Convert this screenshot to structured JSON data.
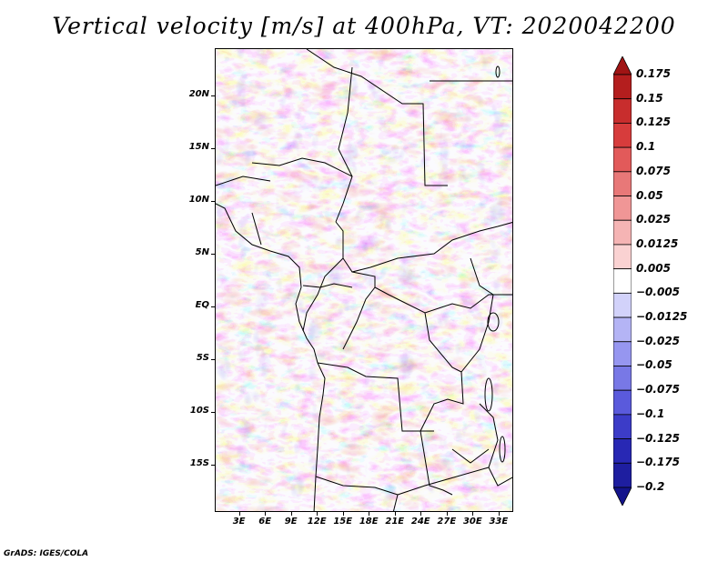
{
  "title": "Vertical velocity [m/s] at 400hPa, VT: 2020042200",
  "footer": "GrADS: IGES/COLA",
  "map": {
    "lat_labels": [
      "20N",
      "15N",
      "10N",
      "5N",
      "EQ",
      "5S",
      "10S",
      "15S"
    ],
    "lon_labels": [
      "3E",
      "6E",
      "9E",
      "12E",
      "15E",
      "18E",
      "21E",
      "24E",
      "27E",
      "30E",
      "33E"
    ],
    "lat_range": [
      -19.5,
      24.5
    ],
    "lon_range": [
      0.2,
      34.7
    ]
  },
  "colorbar": {
    "labels": [
      "0.175",
      "0.15",
      "0.125",
      "0.1",
      "0.075",
      "0.05",
      "0.025",
      "0.0125",
      "0.005",
      "−0.005",
      "−0.0125",
      "−0.025",
      "−0.05",
      "−0.075",
      "−0.1",
      "−0.125",
      "−0.175",
      "−0.2"
    ],
    "colors": [
      "#a01414",
      "#b41e1e",
      "#c82d2d",
      "#d73c3c",
      "#e25a5a",
      "#e87878",
      "#f09696",
      "#f5b4b4",
      "#fad2d2",
      "#ffffff",
      "#d2d2fa",
      "#b4b4f5",
      "#9696f0",
      "#7878e6",
      "#5a5adc",
      "#3c3cc8",
      "#2828b4",
      "#1e1ea0",
      "#14148c"
    ]
  }
}
